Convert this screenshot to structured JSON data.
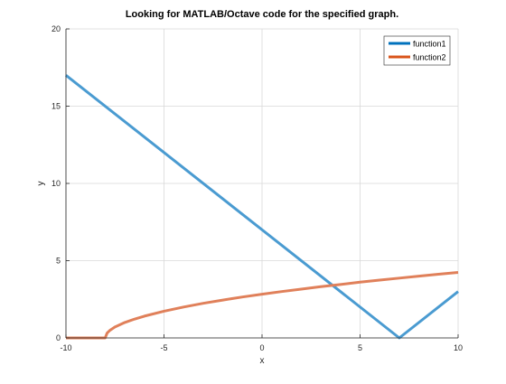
{
  "chart_data": {
    "type": "line",
    "title": "Looking for MATLAB/Octave code for the specified graph.",
    "xlabel": "x",
    "ylabel": "y",
    "xlim": [
      -10,
      10
    ],
    "ylim": [
      0,
      20
    ],
    "xticks": [
      -10,
      -5,
      0,
      5,
      10
    ],
    "yticks": [
      0,
      5,
      10,
      15,
      20
    ],
    "grid": true,
    "legend_position": "top-right",
    "series": [
      {
        "name": "function1",
        "color": "#4a9bd1",
        "legend_color": "#0072bd",
        "x": [
          -10,
          7,
          10
        ],
        "y": [
          17,
          0,
          3
        ]
      },
      {
        "name": "function2",
        "color": "#e0805a",
        "legend_color": "#d95319",
        "x": [
          -10,
          -8,
          -7.9,
          -7.75,
          -7.5,
          -7,
          -6.5,
          -6,
          -5,
          -4,
          -3,
          -2,
          -1,
          0,
          1,
          2,
          3,
          4,
          5,
          6,
          7,
          8,
          9,
          10
        ],
        "y": [
          0,
          0,
          0.32,
          0.5,
          0.71,
          1,
          1.22,
          1.41,
          1.73,
          2,
          2.24,
          2.45,
          2.65,
          2.83,
          3,
          3.16,
          3.32,
          3.46,
          3.61,
          3.74,
          3.87,
          4,
          4.12,
          4.24
        ]
      }
    ]
  }
}
